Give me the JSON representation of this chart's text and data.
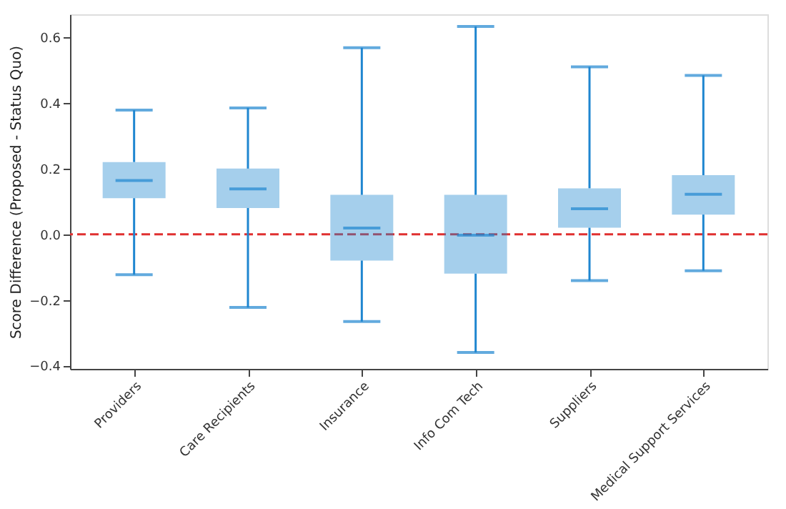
{
  "chart_data": {
    "type": "box",
    "ylabel": "Score Difference (Proposed - Status Quo)",
    "categories": [
      "Providers",
      "Care Recipients",
      "Insurance",
      "Info Com Tech",
      "Suppliers",
      "Medical Support Services"
    ],
    "series": [
      {
        "color": "#1f86d0",
        "boxes": [
          {
            "low": -0.123,
            "q1": 0.11,
            "median": 0.164,
            "q3": 0.22,
            "high": 0.378
          },
          {
            "low": -0.223,
            "q1": 0.08,
            "median": 0.138,
            "q3": 0.2,
            "high": 0.385
          },
          {
            "low": -0.266,
            "q1": -0.08,
            "median": 0.019,
            "q3": 0.12,
            "high": 0.568
          },
          {
            "low": -0.36,
            "q1": -0.12,
            "median": -0.003,
            "q3": 0.12,
            "high": 0.633
          },
          {
            "low": -0.141,
            "q1": 0.02,
            "median": 0.078,
            "q3": 0.14,
            "high": 0.51
          },
          {
            "low": -0.111,
            "q1": 0.06,
            "median": 0.122,
            "q3": 0.18,
            "high": 0.484
          }
        ]
      }
    ],
    "ylim": [
      -0.41,
      0.67
    ],
    "yticks": [
      {
        "value": -0.4,
        "label": "−0.4"
      },
      {
        "value": -0.2,
        "label": "−0.2"
      },
      {
        "value": 0.0,
        "label": "0.0"
      },
      0.2,
      0.4,
      0.6
    ],
    "ref_lines": [
      {
        "axis": "y",
        "value": 0.0,
        "color": "#e03030",
        "line_style": "dashed"
      }
    ],
    "grid": false
  }
}
